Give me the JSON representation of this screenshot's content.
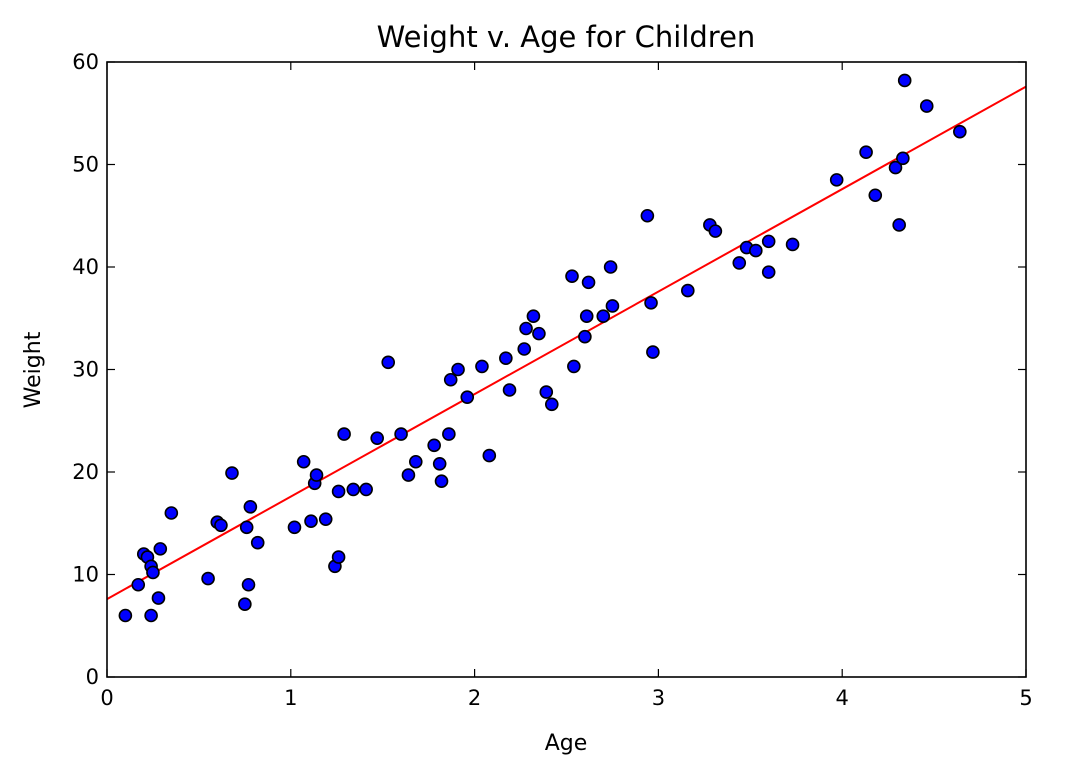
{
  "chart_data": {
    "type": "scatter",
    "title": "Weight v. Age for Children",
    "xlabel": "Age",
    "ylabel": "Weight",
    "xlim": [
      0,
      5
    ],
    "ylim": [
      0,
      60
    ],
    "xticks": [
      0,
      1,
      2,
      3,
      4,
      5
    ],
    "yticks": [
      0,
      10,
      20,
      30,
      40,
      50,
      60
    ],
    "grid": false,
    "colors": {
      "points": "#0000ff",
      "fit_line": "#ff0000"
    },
    "fit_line": {
      "slope": 10.0,
      "intercept": 7.6
    },
    "series": [
      {
        "points": [
          [
            0.1,
            6.0
          ],
          [
            0.17,
            9.0
          ],
          [
            0.2,
            12.0
          ],
          [
            0.22,
            11.7
          ],
          [
            0.24,
            6.0
          ],
          [
            0.24,
            10.8
          ],
          [
            0.25,
            10.2
          ],
          [
            0.28,
            7.7
          ],
          [
            0.29,
            12.5
          ],
          [
            0.35,
            16.0
          ],
          [
            0.55,
            9.6
          ],
          [
            0.6,
            15.1
          ],
          [
            0.62,
            14.8
          ],
          [
            0.68,
            19.9
          ],
          [
            0.75,
            7.1
          ],
          [
            0.76,
            14.6
          ],
          [
            0.77,
            9.0
          ],
          [
            0.78,
            16.6
          ],
          [
            0.82,
            13.1
          ],
          [
            1.02,
            14.6
          ],
          [
            1.07,
            21.0
          ],
          [
            1.11,
            15.2
          ],
          [
            1.13,
            18.9
          ],
          [
            1.14,
            19.7
          ],
          [
            1.19,
            15.4
          ],
          [
            1.24,
            10.8
          ],
          [
            1.26,
            11.7
          ],
          [
            1.26,
            18.1
          ],
          [
            1.29,
            23.7
          ],
          [
            1.34,
            18.3
          ],
          [
            1.41,
            18.3
          ],
          [
            1.47,
            23.3
          ],
          [
            1.53,
            30.7
          ],
          [
            1.6,
            23.7
          ],
          [
            1.64,
            19.7
          ],
          [
            1.68,
            21.0
          ],
          [
            1.78,
            22.6
          ],
          [
            1.81,
            20.8
          ],
          [
            1.82,
            19.1
          ],
          [
            1.86,
            23.7
          ],
          [
            1.87,
            29.0
          ],
          [
            1.91,
            30.0
          ],
          [
            1.96,
            27.3
          ],
          [
            2.04,
            30.3
          ],
          [
            2.08,
            21.6
          ],
          [
            2.17,
            31.1
          ],
          [
            2.19,
            28.0
          ],
          [
            2.27,
            32.0
          ],
          [
            2.28,
            34.0
          ],
          [
            2.32,
            35.2
          ],
          [
            2.35,
            33.5
          ],
          [
            2.39,
            27.8
          ],
          [
            2.42,
            26.6
          ],
          [
            2.53,
            39.1
          ],
          [
            2.54,
            30.3
          ],
          [
            2.6,
            33.2
          ],
          [
            2.61,
            35.2
          ],
          [
            2.62,
            38.5
          ],
          [
            2.7,
            35.2
          ],
          [
            2.74,
            40.0
          ],
          [
            2.75,
            36.2
          ],
          [
            2.94,
            45.0
          ],
          [
            2.96,
            36.5
          ],
          [
            2.97,
            31.7
          ],
          [
            3.16,
            37.7
          ],
          [
            3.28,
            44.1
          ],
          [
            3.31,
            43.5
          ],
          [
            3.44,
            40.4
          ],
          [
            3.48,
            41.9
          ],
          [
            3.53,
            41.6
          ],
          [
            3.6,
            42.5
          ],
          [
            3.6,
            39.5
          ],
          [
            3.73,
            42.2
          ],
          [
            3.97,
            48.5
          ],
          [
            4.13,
            51.2
          ],
          [
            4.18,
            47.0
          ],
          [
            4.29,
            49.7
          ],
          [
            4.31,
            44.1
          ],
          [
            4.33,
            50.6
          ],
          [
            4.34,
            58.2
          ],
          [
            4.46,
            55.7
          ],
          [
            4.64,
            53.2
          ]
        ]
      }
    ]
  }
}
